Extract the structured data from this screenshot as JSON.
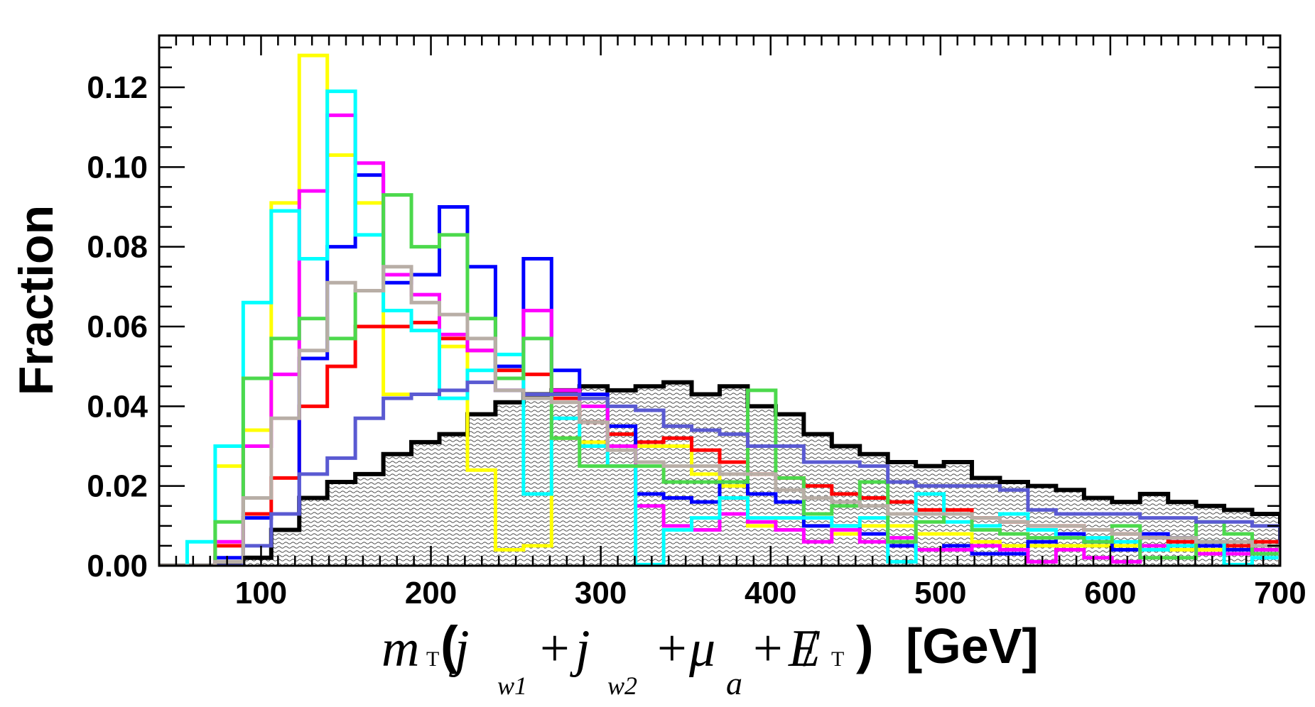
{
  "chart_data": {
    "type": "histogram",
    "ylabel": "Fraction",
    "xlabel": {
      "m": "m",
      "T": "T",
      "paren_open": "(",
      "j1": "j",
      "w1": "w1",
      "plus1": "+",
      "j2": "j",
      "w2": "w2",
      "plus2": "+",
      "mu": "μ",
      "a": "a",
      "plus3": "+",
      "E": "E",
      "slash": "/",
      "ET": "T",
      "paren_close": ")",
      "unit": "[GeV]"
    },
    "xlim": [
      40,
      700
    ],
    "ylim": [
      0,
      0.133
    ],
    "x_ticks": [
      100,
      200,
      300,
      400,
      500,
      600,
      700
    ],
    "x_tick_labels": [
      "100",
      "200",
      "300",
      "400",
      "500",
      "600",
      "700"
    ],
    "y_ticks": [
      0,
      0.02,
      0.04,
      0.06,
      0.08,
      0.1,
      0.12
    ],
    "y_tick_labels": [
      "0.00",
      "0.02",
      "0.04",
      "0.06",
      "0.08",
      "0.10",
      "0.12"
    ],
    "bin_edges": [
      40,
      56.5,
      73,
      89.5,
      106,
      122.5,
      139,
      155.5,
      172,
      188.5,
      205,
      221.5,
      238,
      254.5,
      271,
      287.5,
      304,
      320.5,
      337,
      353.5,
      370,
      386.5,
      403,
      419.5,
      436,
      452.5,
      469,
      485.5,
      502,
      518.5,
      535,
      551.5,
      568,
      584.5,
      601,
      617.5,
      634,
      650.5,
      667,
      683.5,
      700
    ],
    "series": [
      {
        "name": "black",
        "color": "#000000",
        "filled": true,
        "values": [
          0,
          0,
          0,
          0.002,
          0.009,
          0.017,
          0.021,
          0.023,
          0.028,
          0.031,
          0.033,
          0.038,
          0.041,
          0.043,
          0.044,
          0.045,
          0.044,
          0.045,
          0.046,
          0.043,
          0.045,
          0.04,
          0.038,
          0.033,
          0.03,
          0.028,
          0.026,
          0.025,
          0.026,
          0.022,
          0.021,
          0.02,
          0.019,
          0.017,
          0.016,
          0.018,
          0.016,
          0.015,
          0.014,
          0.013
        ]
      },
      {
        "name": "yellow",
        "color": "#ffff00",
        "filled": false,
        "values": [
          0,
          0,
          0.025,
          0.034,
          0.091,
          0.128,
          0.103,
          0.091,
          0.043,
          0.043,
          0.055,
          0.024,
          0.004,
          0.005,
          0.032,
          0.031,
          0.03,
          0.03,
          0.03,
          0.023,
          0.02,
          0.01,
          0.012,
          0.01,
          0.008,
          0.01,
          0.01,
          0.008,
          0.008,
          0.006,
          0.005,
          0.005,
          0.005,
          0.005,
          0.005,
          0.005,
          0.004,
          0.004,
          0.004,
          0.004
        ]
      },
      {
        "name": "red",
        "color": "#ff0000",
        "filled": false,
        "values": [
          0,
          0,
          0.005,
          0.013,
          0.022,
          0.04,
          0.05,
          0.06,
          0.06,
          0.061,
          0.057,
          0.054,
          0.049,
          0.048,
          0.042,
          0.036,
          0.033,
          0.031,
          0.032,
          0.029,
          0.026,
          0.023,
          0.022,
          0.02,
          0.018,
          0.017,
          0.016,
          0.014,
          0.014,
          0.012,
          0.011,
          0.01,
          0.01,
          0.009,
          0.008,
          0.007,
          0.006,
          0.006,
          0.005,
          0.006
        ]
      },
      {
        "name": "blue",
        "color": "#0000ff",
        "filled": false,
        "values": [
          0,
          0,
          0.002,
          0.012,
          0.013,
          0.052,
          0.08,
          0.098,
          0.071,
          0.073,
          0.09,
          0.075,
          0.05,
          0.077,
          0.049,
          0.043,
          0.035,
          0.018,
          0.017,
          0.016,
          0.021,
          0.018,
          0.016,
          0.01,
          0.01,
          0.008,
          0.005,
          0.004,
          0.005,
          0.003,
          0.003,
          0.006,
          0.008,
          0.006,
          0.004,
          0.008,
          0.007,
          0.005,
          0.004,
          0.003
        ]
      },
      {
        "name": "magenta",
        "color": "#ff00ff",
        "filled": false,
        "values": [
          0,
          0,
          0.006,
          0.03,
          0.048,
          0.094,
          0.113,
          0.101,
          0.073,
          0.068,
          0.058,
          0.054,
          0.044,
          0.064,
          0.044,
          0.04,
          0.03,
          0.015,
          0.01,
          0.009,
          0.013,
          0.011,
          0.009,
          0.006,
          0.009,
          0.006,
          0.007,
          0.004,
          0.004,
          0.005,
          0.004,
          0.001,
          0.004,
          0.002,
          0.001,
          0.005,
          0.005,
          0.003,
          0.003,
          0.004
        ]
      },
      {
        "name": "cyan",
        "color": "#00ffff",
        "filled": false,
        "values": [
          0,
          0.006,
          0.03,
          0.066,
          0.089,
          0.077,
          0.119,
          0.083,
          0.064,
          0.059,
          0.042,
          0.049,
          0.053,
          0.018,
          0.037,
          0.03,
          0.025,
          0.0003,
          0.009,
          0.012,
          0.017,
          0.012,
          0.012,
          0.012,
          0.01,
          0.012,
          0.001,
          0.018,
          0.011,
          0.01,
          0.013,
          0.009,
          0.007,
          0.007,
          0.006,
          0.004,
          0.005,
          0.006,
          0.0003,
          0.002
        ]
      },
      {
        "name": "green",
        "color": "#4cd94c",
        "filled": false,
        "values": [
          0,
          0,
          0.011,
          0.047,
          0.057,
          0.062,
          0.057,
          0.069,
          0.093,
          0.08,
          0.083,
          0.062,
          0.047,
          0.057,
          0.032,
          0.025,
          0.025,
          0.025,
          0.021,
          0.021,
          0.021,
          0.044,
          0.022,
          0.013,
          0.015,
          0.021,
          0.006,
          0.011,
          0.013,
          0.009,
          0.008,
          0.007,
          0.007,
          0.006,
          0.01,
          0.002,
          0.002,
          0.011,
          0.008,
          0.003
        ]
      },
      {
        "name": "slateblue",
        "color": "#5a5ad2",
        "filled": false,
        "values": [
          0,
          0,
          0,
          0.005,
          0.013,
          0.023,
          0.027,
          0.037,
          0.042,
          0.043,
          0.044,
          0.046,
          0.044,
          0.043,
          0.043,
          0.042,
          0.04,
          0.039,
          0.035,
          0.034,
          0.033,
          0.03,
          0.03,
          0.026,
          0.026,
          0.025,
          0.021,
          0.02,
          0.02,
          0.02,
          0.019,
          0.014,
          0.013,
          0.013,
          0.013,
          0.012,
          0.012,
          0.011,
          0.011,
          0.01
        ]
      },
      {
        "name": "gray",
        "color": "#b8aea6",
        "filled": false,
        "values": [
          0,
          0,
          0.001,
          0.017,
          0.037,
          0.054,
          0.071,
          0.069,
          0.075,
          0.066,
          0.063,
          0.057,
          0.044,
          0.042,
          0.041,
          0.036,
          0.029,
          0.026,
          0.025,
          0.025,
          0.023,
          0.023,
          0.019,
          0.017,
          0.016,
          0.015,
          0.013,
          0.013,
          0.013,
          0.012,
          0.011,
          0.01,
          0.01,
          0.009,
          0.008,
          0.007,
          0.007,
          0.006,
          0.006,
          0.005
        ]
      }
    ]
  }
}
